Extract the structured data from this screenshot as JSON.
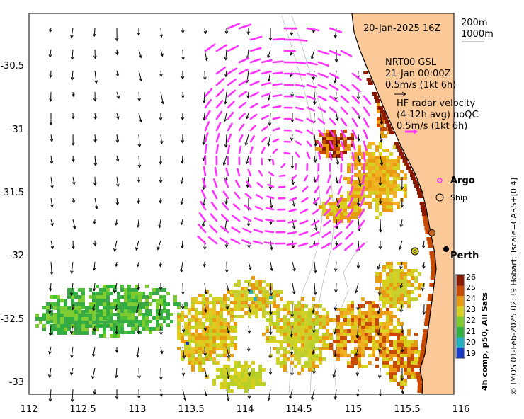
{
  "map": {
    "date_label": "20-Jan-2025 16Z",
    "depth_labels": [
      "200m",
      "1000m"
    ],
    "model_block": [
      "NRT00 GSL",
      "21-Jan 00:00Z",
      "0.5m/s (1kt 6h)"
    ],
    "radar_block": [
      "HF radar velocity",
      "(4-12h avg) noQC",
      "0.5m/s (1kt 6h)"
    ],
    "legend": {
      "argo": "Argo",
      "ship": "Ship"
    },
    "place_label": "Perth",
    "colorbar": {
      "title": "4h comp, p50, All Sats",
      "ticks": [
        "26",
        "25",
        "24",
        "23",
        "22",
        "21",
        "20",
        "19"
      ],
      "colors": [
        "#8b1a00",
        "#c84a00",
        "#e89b10",
        "#d8d020",
        "#7fcc30",
        "#30b040",
        "#20b0c0",
        "#1a3cc8"
      ]
    },
    "credit": "© IMOS 01-Feb-2025 02:39 Hobart; Tscale=CARS+[0 4]",
    "x_ticks": [
      "112",
      "112.5",
      "113",
      "113.5",
      "114",
      "114.5",
      "115",
      "115.5",
      "116"
    ],
    "y_ticks": [
      "-30.5",
      "-31",
      "-31.5",
      "-32",
      "-32.5",
      "-33"
    ],
    "colors": {
      "land": "#fbc898",
      "radar_arrow": "#ff33ff",
      "ocean": "#ffffff"
    }
  }
}
